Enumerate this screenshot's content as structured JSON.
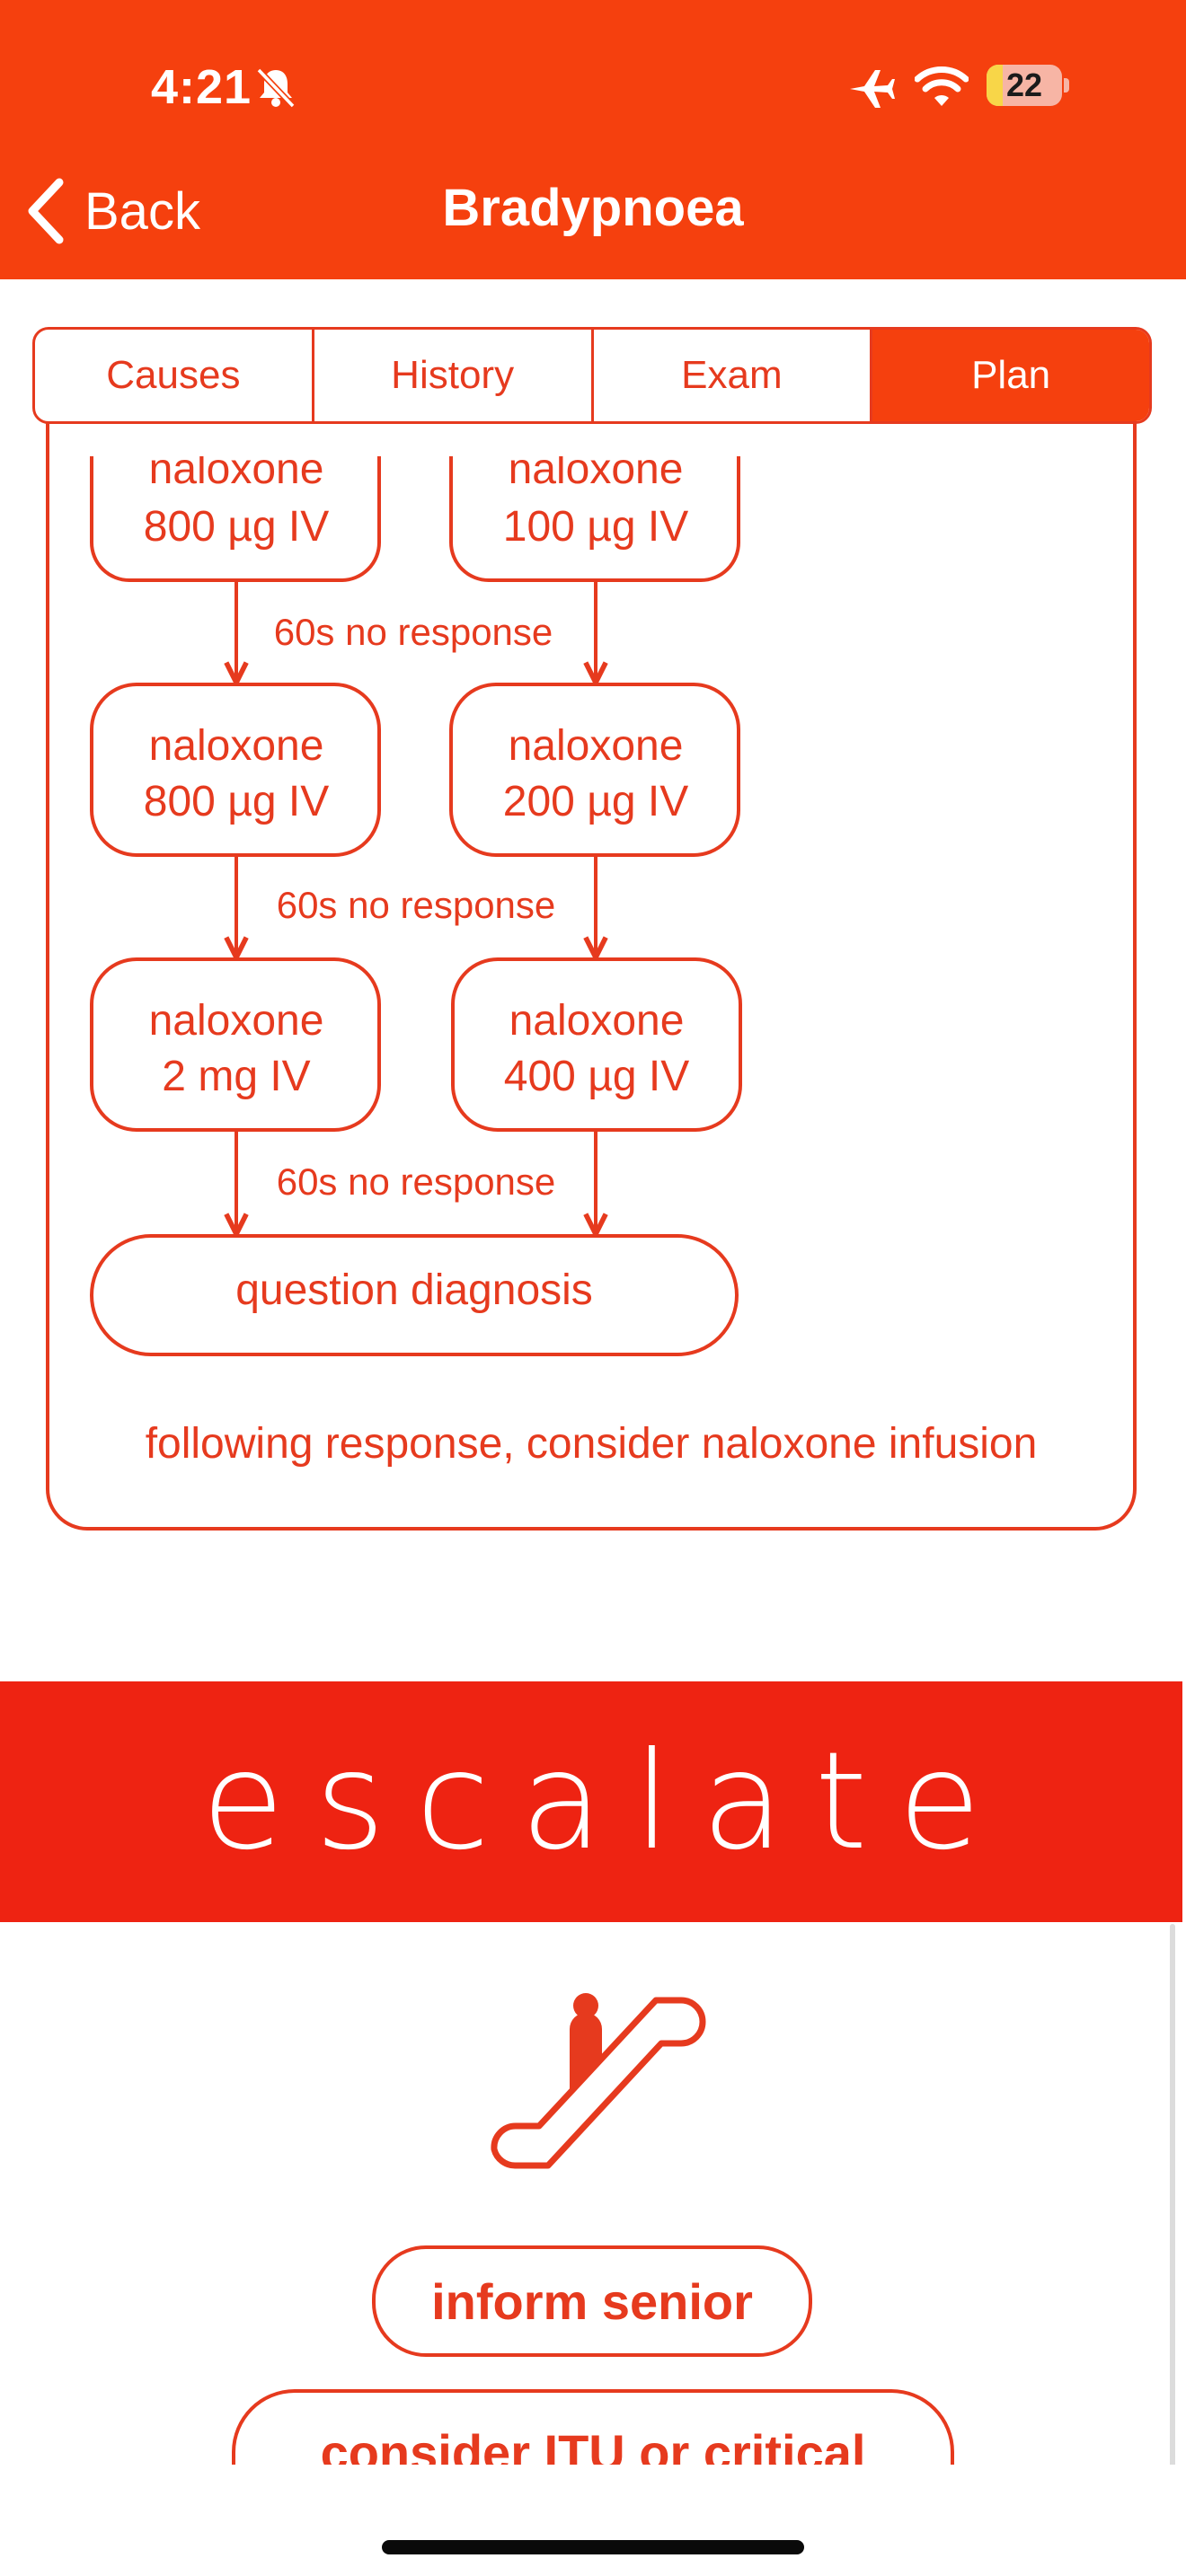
{
  "status_bar": {
    "time": "4:21",
    "battery_level": "22",
    "battery_fraction": 0.22,
    "icons": [
      "bell-slash-icon",
      "airplane-icon",
      "wifi-icon",
      "battery-icon"
    ]
  },
  "nav": {
    "back_label": "Back",
    "title": "Bradypnoea"
  },
  "tabs": [
    {
      "label": "Causes",
      "active": false
    },
    {
      "label": "History",
      "active": false
    },
    {
      "label": "Exam",
      "active": false
    },
    {
      "label": "Plan",
      "active": true
    }
  ],
  "flowchart": {
    "left_column": [
      {
        "line1": "naloxone",
        "line2": "800 µg IV"
      },
      {
        "line1": "naloxone",
        "line2": "800 µg IV"
      },
      {
        "line1": "naloxone",
        "line2": "2 mg IV"
      }
    ],
    "right_column": [
      {
        "line1": "naloxone",
        "line2": "100 µg IV"
      },
      {
        "line1": "naloxone",
        "line2": "200 µg IV"
      },
      {
        "line1": "naloxone",
        "line2": "400 µg IV"
      }
    ],
    "step_labels": [
      "60s no response",
      "60s no response",
      "60s no response"
    ],
    "final_box": "question diagnosis",
    "note": "following response, consider naloxone infusion"
  },
  "escalate": {
    "title": "escalate",
    "icon": "escalator-icon",
    "actions": [
      "inform senior",
      "consider ITU or critical"
    ]
  },
  "colors": {
    "header": "#f5400e",
    "accent": "#e63a1e",
    "escalate_band": "#ee2312"
  }
}
